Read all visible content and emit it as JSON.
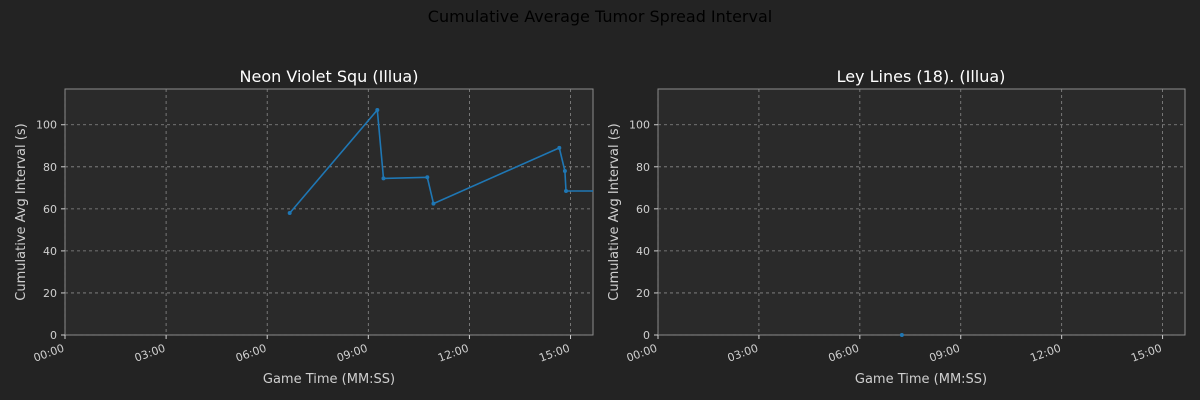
{
  "figure": {
    "suptitle": "Cumulative Average Tumor Spread Interval"
  },
  "chart_data": [
    {
      "type": "line",
      "title": "Neon Violet Squ (Illua)",
      "xlabel": "Game Time (MM:SS)",
      "ylabel": "Cumulative Avg Interval (s)",
      "x_tick_labels": [
        "00:00",
        "03:00",
        "06:00",
        "09:00",
        "12:00",
        "15:00"
      ],
      "x_ticks_seconds": [
        0,
        180,
        360,
        540,
        720,
        900
      ],
      "xlim_seconds": [
        0,
        940
      ],
      "ylim": [
        0,
        117
      ],
      "y_ticks": [
        0,
        20,
        40,
        60,
        80,
        100
      ],
      "grid": true,
      "line_color": "#1f77b4",
      "series": [
        {
          "x": [
            400,
            556,
            567,
            645,
            656,
            880,
            890,
            892,
            940
          ],
          "y": [
            58,
            107,
            74.5,
            75,
            62.5,
            89,
            78,
            68.5,
            68.5
          ]
        }
      ]
    },
    {
      "type": "line",
      "title": "Ley Lines (18). (Illua)",
      "xlabel": "Game Time (MM:SS)",
      "ylabel": "Cumulative Avg Interval (s)",
      "x_tick_labels": [
        "00:00",
        "03:00",
        "06:00",
        "09:00",
        "12:00",
        "15:00"
      ],
      "x_ticks_seconds": [
        0,
        180,
        360,
        540,
        720,
        900
      ],
      "xlim_seconds": [
        0,
        940
      ],
      "ylim": [
        0,
        117
      ],
      "y_ticks": [
        0,
        20,
        40,
        60,
        80,
        100
      ],
      "grid": true,
      "line_color": "#1f77b4",
      "series": [
        {
          "x": [
            435
          ],
          "y": [
            0
          ]
        }
      ]
    }
  ]
}
